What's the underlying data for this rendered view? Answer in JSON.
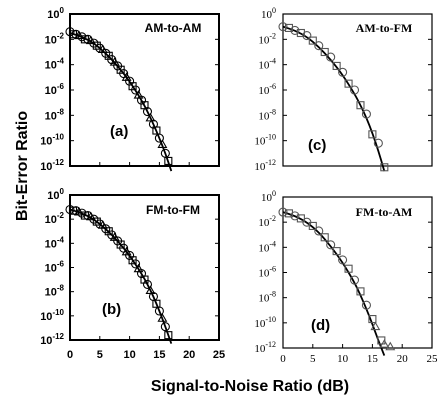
{
  "figure": {
    "ylabel": "Bit-Error Ratio",
    "xlabel": "Signal-to-Noise Ratio (dB)"
  },
  "chart_data": [
    {
      "type": "scatter",
      "panel_label": "(a)",
      "title": "AM-to-AM",
      "xlim": [
        0,
        25
      ],
      "ylim_exponent": [
        -12,
        0
      ],
      "yscale": "log",
      "x_ticks": [
        "0",
        "5",
        "10",
        "15",
        "20",
        "25"
      ],
      "y_tick_exponents": [
        0,
        -2,
        -4,
        -6,
        -8,
        -10,
        -12
      ],
      "curve": {
        "x": [
          0,
          2,
          4,
          6,
          8,
          10,
          12,
          13,
          14,
          15,
          16,
          17
        ],
        "y_exponent": [
          -1.5,
          -1.8,
          -2.3,
          -3.1,
          -4.1,
          -5.3,
          -6.8,
          -7.7,
          -8.7,
          -9.8,
          -11.0,
          -12.4
        ]
      },
      "series": [
        {
          "marker": "circle",
          "x": [
            0,
            1,
            2,
            3,
            4,
            5,
            6,
            7,
            8,
            9,
            10,
            11,
            12,
            13,
            14,
            15,
            16
          ],
          "y_exponent": [
            -1.4,
            -1.6,
            -1.8,
            -2.0,
            -2.3,
            -2.7,
            -3.1,
            -3.6,
            -4.1,
            -4.7,
            -5.3,
            -6.0,
            -6.8,
            -7.7,
            -8.7,
            -9.8,
            -11.0
          ]
        },
        {
          "marker": "square",
          "x": [
            0.5,
            2.5,
            4.5,
            6.5,
            8.5,
            10.5,
            12.5,
            14.5,
            16.5
          ],
          "y_exponent": [
            -1.6,
            -2.0,
            -2.5,
            -3.3,
            -4.4,
            -5.7,
            -7.2,
            -9.2,
            -11.6
          ]
        },
        {
          "marker": "triangle",
          "x": [
            1.5,
            3.5,
            5.5,
            7.5,
            9.5,
            11.5,
            13.5,
            15.5
          ],
          "y_exponent": [
            -1.7,
            -2.1,
            -2.8,
            -3.8,
            -5.0,
            -6.4,
            -8.2,
            -10.3
          ]
        }
      ]
    },
    {
      "type": "scatter",
      "panel_label": "(b)",
      "title": "FM-to-FM",
      "xlim": [
        0,
        25
      ],
      "ylim_exponent": [
        -12,
        0
      ],
      "yscale": "log",
      "x_ticks": [
        "0",
        "5",
        "10",
        "15",
        "20",
        "25"
      ],
      "y_tick_exponents": [
        0,
        -2,
        -4,
        -6,
        -8,
        -10,
        -12
      ],
      "curve": {
        "x": [
          0,
          2,
          4,
          6,
          8,
          10,
          12,
          13,
          14,
          15,
          16,
          17
        ],
        "y_exponent": [
          -1.2,
          -1.5,
          -2.0,
          -2.8,
          -3.8,
          -5.0,
          -6.5,
          -7.4,
          -8.4,
          -9.6,
          -10.9,
          -12.3
        ]
      },
      "series": [
        {
          "marker": "circle",
          "x": [
            0,
            1,
            2,
            3,
            4,
            5,
            6,
            7,
            8,
            9,
            10,
            11,
            12,
            13,
            14,
            15,
            16
          ],
          "y_exponent": [
            -1.2,
            -1.3,
            -1.5,
            -1.7,
            -2.0,
            -2.4,
            -2.8,
            -3.3,
            -3.8,
            -4.4,
            -5.0,
            -5.7,
            -6.5,
            -7.4,
            -8.4,
            -9.6,
            -10.9
          ]
        },
        {
          "marker": "square",
          "x": [
            0.5,
            2.5,
            4.5,
            6.5,
            8.5,
            10.5,
            12.5,
            14.5,
            16.5
          ],
          "y_exponent": [
            -1.3,
            -1.7,
            -2.2,
            -3.0,
            -4.1,
            -5.4,
            -7.0,
            -9.0,
            -11.6
          ]
        },
        {
          "marker": "triangle",
          "x": [
            1.5,
            3.5,
            5.5,
            7.5,
            9.5,
            11.5,
            13.5,
            15.5
          ],
          "y_exponent": [
            -1.4,
            -1.8,
            -2.5,
            -3.5,
            -4.7,
            -6.1,
            -7.9,
            -10.2
          ]
        }
      ]
    },
    {
      "type": "scatter",
      "panel_label": "(c)",
      "title": "AM-to-FM",
      "xlim": [
        0,
        25
      ],
      "ylim_exponent": [
        -12,
        0
      ],
      "yscale": "log",
      "x_ticks": [],
      "y_tick_exponents": [
        0,
        -2,
        -4,
        -6,
        -8,
        -10,
        -12
      ],
      "curve": {
        "x": [
          0,
          2,
          4,
          6,
          8,
          10,
          12,
          13,
          14,
          15,
          16,
          17
        ],
        "y_exponent": [
          -1.0,
          -1.3,
          -1.8,
          -2.6,
          -3.6,
          -4.8,
          -6.3,
          -7.2,
          -8.2,
          -9.4,
          -10.8,
          -12.4
        ]
      },
      "series": [
        {
          "marker": "circle",
          "x": [
            0,
            2,
            4,
            6,
            8,
            10,
            12,
            14,
            16
          ],
          "y_exponent": [
            -1.0,
            -1.3,
            -1.7,
            -2.5,
            -3.4,
            -4.6,
            -6.0,
            -7.9,
            -10.2
          ]
        },
        {
          "marker": "square",
          "x": [
            1,
            3,
            5,
            7,
            9,
            11,
            13,
            15,
            17
          ],
          "y_exponent": [
            -1.1,
            -1.5,
            -2.1,
            -3.0,
            -4.1,
            -5.5,
            -7.2,
            -9.5,
            -12.1
          ]
        }
      ]
    },
    {
      "type": "scatter",
      "panel_label": "(d)",
      "title": "FM-to-AM",
      "xlim": [
        0,
        25
      ],
      "ylim_exponent": [
        -12,
        0
      ],
      "yscale": "log",
      "x_ticks": [
        "0",
        "5",
        "10",
        "15",
        "20",
        "25"
      ],
      "y_tick_exponents": [
        0,
        -2,
        -4,
        -6,
        -8,
        -10,
        -12
      ],
      "curve": {
        "x": [
          0,
          2,
          4,
          6,
          8,
          10,
          12,
          13,
          14,
          15,
          16,
          17
        ],
        "y_exponent": [
          -1.2,
          -1.5,
          -2.0,
          -2.8,
          -3.9,
          -5.2,
          -6.8,
          -7.8,
          -8.9,
          -10.1,
          -11.4,
          -12.6
        ]
      },
      "series": [
        {
          "marker": "circle",
          "x": [
            0,
            2,
            4,
            6,
            8,
            10,
            12,
            14
          ],
          "y_exponent": [
            -1.2,
            -1.5,
            -2.0,
            -2.7,
            -3.8,
            -5.0,
            -6.6,
            -8.6
          ]
        },
        {
          "marker": "square",
          "x": [
            1,
            3,
            5,
            7,
            9,
            11,
            13,
            15,
            16.5
          ],
          "y_exponent": [
            -1.3,
            -1.7,
            -2.3,
            -3.2,
            -4.3,
            -5.7,
            -7.5,
            -9.7,
            -11.4
          ]
        },
        {
          "marker": "triangle",
          "x": [
            15.5,
            17,
            18
          ],
          "y_exponent": [
            -10.3,
            -11.7,
            -11.9
          ]
        }
      ]
    }
  ]
}
